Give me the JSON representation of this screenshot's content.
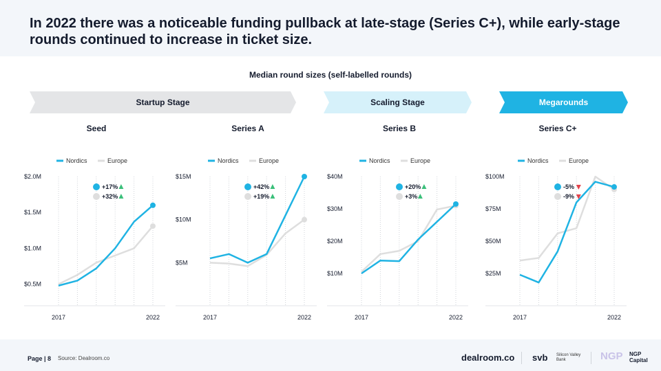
{
  "headline": "In 2022 there was a noticeable funding pullback at late-stage (Series C+), while early-stage rounds continued to increase in ticket size.",
  "subtitle": "Median round sizes (self-labelled rounds)",
  "colors": {
    "nordics": "#1fb3e3",
    "europe": "#dedede",
    "up": "#3bbf7a",
    "down": "#e2434b",
    "stage_startup": "#e4e5e7",
    "stage_scaling": "#d6f1fa",
    "stage_mega": "#1fb3e3"
  },
  "stages": {
    "startup": "Startup Stage",
    "scaling": "Scaling Stage",
    "mega": "Megarounds"
  },
  "legend": {
    "nordics": "Nordics",
    "europe": "Europe"
  },
  "chart_data": [
    {
      "type": "line",
      "title": "Seed",
      "x": [
        2017,
        2018,
        2019,
        2020,
        2021,
        2022
      ],
      "x_tick_labels": [
        "2017",
        "2022"
      ],
      "ylim": [
        0.2,
        2.0
      ],
      "y_ticks": [
        0.5,
        1.0,
        1.5,
        2.0
      ],
      "y_tick_labels": [
        "$0.5M",
        "$1.0M",
        "$1.5M",
        "$2.0M"
      ],
      "series": [
        {
          "name": "Nordics",
          "values": [
            0.48,
            0.55,
            0.72,
            1.0,
            1.37,
            1.6
          ],
          "change": "+17%",
          "trend": "up"
        },
        {
          "name": "Europe",
          "values": [
            0.5,
            0.63,
            0.8,
            0.9,
            1.0,
            1.31
          ],
          "change": "+32%",
          "trend": "up"
        }
      ]
    },
    {
      "type": "line",
      "title": "Series A",
      "x": [
        2017,
        2018,
        2019,
        2020,
        2021,
        2022
      ],
      "x_tick_labels": [
        "2017",
        "2022"
      ],
      "ylim": [
        0,
        15
      ],
      "y_ticks": [
        5,
        10,
        15
      ],
      "y_tick_labels": [
        "$5M",
        "$10M",
        "$15M"
      ],
      "series": [
        {
          "name": "Nordics",
          "values": [
            5.5,
            6.0,
            5.0,
            6.0,
            10.5,
            15.0
          ],
          "change": "+42%",
          "trend": "up"
        },
        {
          "name": "Europe",
          "values": [
            5.0,
            4.9,
            4.6,
            5.9,
            8.4,
            10.0
          ],
          "change": "+19%",
          "trend": "up"
        }
      ]
    },
    {
      "type": "line",
      "title": "Series B",
      "x": [
        2017,
        2018,
        2019,
        2020,
        2021,
        2022
      ],
      "x_tick_labels": [
        "2017",
        "2022"
      ],
      "ylim": [
        0,
        40
      ],
      "y_ticks": [
        10,
        20,
        30,
        40
      ],
      "y_tick_labels": [
        "$10M",
        "$20M",
        "$30M",
        "$40M"
      ],
      "series": [
        {
          "name": "Nordics",
          "values": [
            10.0,
            14.0,
            13.8,
            20.5,
            26.0,
            31.5
          ],
          "change": "+20%",
          "trend": "up"
        },
        {
          "name": "Europe",
          "values": [
            10.5,
            16.0,
            17.0,
            20.0,
            29.8,
            31.0
          ],
          "change": "+3%",
          "trend": "up"
        }
      ]
    },
    {
      "type": "line",
      "title": "Series C+",
      "x": [
        2017,
        2018,
        2019,
        2020,
        2021,
        2022
      ],
      "x_tick_labels": [
        "2017",
        "2022"
      ],
      "ylim": [
        0,
        100
      ],
      "y_ticks": [
        25,
        50,
        75,
        100
      ],
      "y_tick_labels": [
        "$25M",
        "$50M",
        "$75M",
        "$100M"
      ],
      "series": [
        {
          "name": "Nordics",
          "values": [
            24,
            18,
            42,
            80,
            96,
            92
          ],
          "change": "-5%",
          "trend": "down"
        },
        {
          "name": "Europe",
          "values": [
            35,
            37,
            56,
            60,
            100,
            90
          ],
          "change": "-9%",
          "trend": "down"
        }
      ]
    }
  ],
  "footer": {
    "page": "Page | 8",
    "source": "Source: Dealroom.co",
    "brand_dealroom": "dealroom.co",
    "brand_svb": "svb",
    "brand_svb_sub": "Silicon Valley Bank",
    "brand_ngp": "NGP",
    "brand_ngp_sub": "NGP Capital"
  }
}
